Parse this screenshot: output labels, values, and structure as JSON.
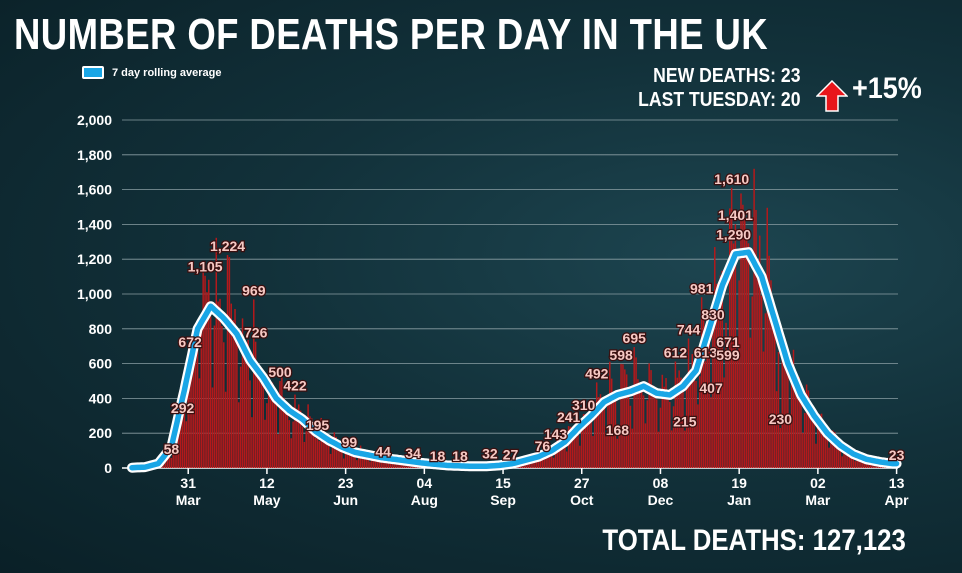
{
  "header": {
    "title": "NUMBER OF DEATHS PER DAY IN THE UK"
  },
  "stats": {
    "new_deaths": "NEW DEATHS: 23",
    "last_tuesday": "LAST TUESDAY: 20",
    "change": "+15%",
    "change_icon": "red-up-arrow",
    "total": "TOTAL DEATHS: 127,123"
  },
  "colors": {
    "bars": "#b3191b",
    "line": "#19a6e6",
    "line_outline": "#ffffff",
    "arrow": "#e8161b",
    "label": "#f6c9c4"
  },
  "chart_data": {
    "type": "bar",
    "title": "NUMBER OF DEATHS PER DAY IN THE UK",
    "xlabel": "",
    "ylabel": "",
    "ylim": [
      0,
      2000
    ],
    "yticks": [
      "0",
      "200",
      "400",
      "600",
      "800",
      "1,000",
      "1,200",
      "1,400",
      "1,600",
      "1,800",
      "2,000"
    ],
    "start_date": "2020-03-01",
    "total_days": 409,
    "xticks": [
      {
        "day": 30,
        "top": "31",
        "bottom": "Mar"
      },
      {
        "day": 72,
        "top": "12",
        "bottom": "May"
      },
      {
        "day": 114,
        "top": "23",
        "bottom": "Jun"
      },
      {
        "day": 156,
        "top": "04",
        "bottom": "Aug"
      },
      {
        "day": 198,
        "top": "15",
        "bottom": "Sep"
      },
      {
        "day": 240,
        "top": "27",
        "bottom": "Oct"
      },
      {
        "day": 282,
        "top": "08",
        "bottom": "Dec"
      },
      {
        "day": 324,
        "top": "19",
        "bottom": "Jan"
      },
      {
        "day": 366,
        "top": "02",
        "bottom": "Mar"
      },
      {
        "day": 408,
        "top": "13",
        "bottom": "Apr"
      }
    ],
    "legend": {
      "label": "7 day rolling average",
      "position": "top-left"
    },
    "rolling_average_weekly": [
      2,
      5,
      25,
      120,
      450,
      800,
      930,
      860,
      770,
      620,
      520,
      400,
      330,
      280,
      210,
      160,
      120,
      90,
      75,
      60,
      50,
      40,
      30,
      22,
      15,
      12,
      10,
      10,
      15,
      25,
      45,
      65,
      100,
      150,
      230,
      300,
      380,
      420,
      440,
      470,
      430,
      420,
      470,
      560,
      800,
      1050,
      1230,
      1240,
      1100,
      850,
      600,
      420,
      300,
      200,
      130,
      80,
      50,
      35,
      25
    ],
    "annotations": [
      {
        "day": 21,
        "value": 58,
        "label": "58"
      },
      {
        "day": 27,
        "value": 292,
        "label": "292"
      },
      {
        "day": 31,
        "value": 672,
        "label": "672"
      },
      {
        "day": 39,
        "value": 1105,
        "label": "1,105"
      },
      {
        "day": 51,
        "value": 1224,
        "label": "1,224"
      },
      {
        "day": 65,
        "value": 969,
        "label": "969"
      },
      {
        "day": 66,
        "value": 726,
        "label": "726"
      },
      {
        "day": 79,
        "value": 500,
        "label": "500"
      },
      {
        "day": 87,
        "value": 422,
        "label": "422"
      },
      {
        "day": 99,
        "value": 195,
        "label": "195"
      },
      {
        "day": 116,
        "value": 99,
        "label": "99"
      },
      {
        "day": 134,
        "value": 44,
        "label": "44"
      },
      {
        "day": 150,
        "value": 34,
        "label": "34"
      },
      {
        "day": 163,
        "value": 18,
        "label": "18"
      },
      {
        "day": 175,
        "value": 18,
        "label": "18"
      },
      {
        "day": 191,
        "value": 32,
        "label": "32"
      },
      {
        "day": 202,
        "value": 27,
        "label": "27"
      },
      {
        "day": 219,
        "value": 76,
        "label": "76"
      },
      {
        "day": 226,
        "value": 143,
        "label": "143"
      },
      {
        "day": 233,
        "value": 241,
        "label": "241"
      },
      {
        "day": 241,
        "value": 310,
        "label": "310"
      },
      {
        "day": 248,
        "value": 492,
        "label": "492"
      },
      {
        "day": 259,
        "value": 168,
        "label": "168"
      },
      {
        "day": 261,
        "value": 598,
        "label": "598"
      },
      {
        "day": 268,
        "value": 695,
        "label": "695"
      },
      {
        "day": 290,
        "value": 612,
        "label": "612"
      },
      {
        "day": 295,
        "value": 215,
        "label": "215"
      },
      {
        "day": 297,
        "value": 744,
        "label": "744"
      },
      {
        "day": 304,
        "value": 981,
        "label": "981"
      },
      {
        "day": 310,
        "value": 830,
        "label": "830"
      },
      {
        "day": 306,
        "value": 613,
        "label": "613"
      },
      {
        "day": 309,
        "value": 407,
        "label": "407"
      },
      {
        "day": 318,
        "value": 671,
        "label": "671"
      },
      {
        "day": 318,
        "value": 599,
        "label": "599"
      },
      {
        "day": 321,
        "value": 1290,
        "label": "1,290"
      },
      {
        "day": 322,
        "value": 1401,
        "label": "1,401"
      },
      {
        "day": 320,
        "value": 1610,
        "label": "1,610"
      },
      {
        "day": 346,
        "value": 230,
        "label": "230"
      },
      {
        "day": 408,
        "value": 23,
        "label": "23"
      }
    ]
  }
}
